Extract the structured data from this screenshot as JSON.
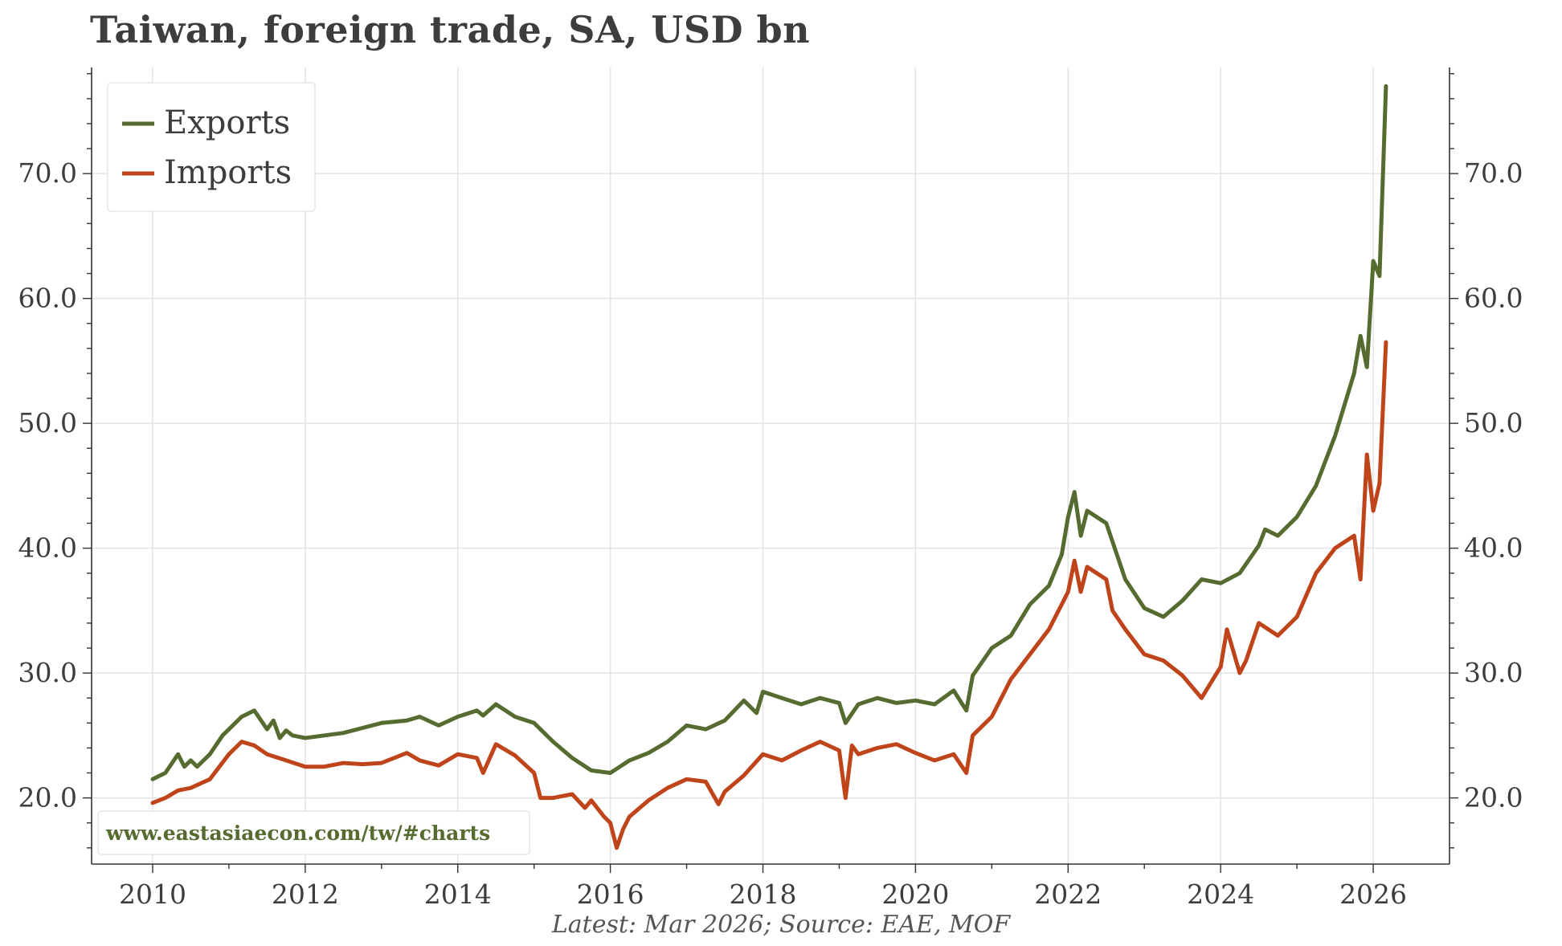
{
  "chart_data": {
    "type": "line",
    "title": "Taiwan, foreign trade, SA, USD bn",
    "xlabel": "",
    "ylabel": "",
    "xlim": [
      2009.2,
      2027.0
    ],
    "ylim": [
      14.7,
      78.5
    ],
    "y_ticks": [
      20,
      30,
      40,
      50,
      60,
      70
    ],
    "y_tick_labels": [
      "20.0",
      "30.0",
      "40.0",
      "50.0",
      "60.0",
      "70.0"
    ],
    "x_ticks": [
      2010,
      2012,
      2014,
      2016,
      2018,
      2020,
      2022,
      2024,
      2026
    ],
    "x_tick_labels": [
      "2010",
      "2012",
      "2014",
      "2016",
      "2018",
      "2020",
      "2022",
      "2024",
      "2026"
    ],
    "grid": true,
    "legend_position": "top-left",
    "watermark": "www.eastasiaecon.com/tw/#charts",
    "footer": "Latest: Mar 2026; Source: EAE, MOF",
    "series": [
      {
        "name": "Exports",
        "color": "#556b2f",
        "x": [
          2010.0,
          2010.167,
          2010.333,
          2010.417,
          2010.5,
          2010.583,
          2010.75,
          2010.917,
          2011.0,
          2011.167,
          2011.333,
          2011.5,
          2011.583,
          2011.667,
          2011.75,
          2011.833,
          2012.0,
          2012.25,
          2012.5,
          2012.75,
          2013.0,
          2013.333,
          2013.5,
          2013.75,
          2014.0,
          2014.25,
          2014.333,
          2014.5,
          2014.75,
          2015.0,
          2015.25,
          2015.5,
          2015.75,
          2016.0,
          2016.25,
          2016.5,
          2016.75,
          2017.0,
          2017.25,
          2017.5,
          2017.75,
          2017.917,
          2018.0,
          2018.25,
          2018.5,
          2018.75,
          2019.0,
          2019.083,
          2019.25,
          2019.5,
          2019.75,
          2020.0,
          2020.25,
          2020.5,
          2020.667,
          2020.75,
          2021.0,
          2021.25,
          2021.5,
          2021.75,
          2021.917,
          2022.0,
          2022.083,
          2022.167,
          2022.25,
          2022.5,
          2022.75,
          2023.0,
          2023.25,
          2023.5,
          2023.75,
          2024.0,
          2024.25,
          2024.5,
          2024.583,
          2024.75,
          2025.0,
          2025.25,
          2025.5,
          2025.75,
          2025.833,
          2025.917,
          2026.0,
          2026.083,
          2026.167
        ],
        "values": [
          21.5,
          22.0,
          23.5,
          22.5,
          23.0,
          22.5,
          23.5,
          25.0,
          25.5,
          26.5,
          27.0,
          25.5,
          26.2,
          24.8,
          25.4,
          25.0,
          24.8,
          25.0,
          25.2,
          25.6,
          26.0,
          26.2,
          26.5,
          25.8,
          26.5,
          27.0,
          26.6,
          27.5,
          26.5,
          26.0,
          24.5,
          23.2,
          22.2,
          22.0,
          23.0,
          23.6,
          24.5,
          25.8,
          25.5,
          26.2,
          27.8,
          26.8,
          28.5,
          28.0,
          27.5,
          28.0,
          27.6,
          26.0,
          27.5,
          28.0,
          27.6,
          27.8,
          27.5,
          28.6,
          27.0,
          29.8,
          32.0,
          33.0,
          35.5,
          37.0,
          39.5,
          42.5,
          44.5,
          41.0,
          43.0,
          42.0,
          37.5,
          35.2,
          34.5,
          35.8,
          37.5,
          37.2,
          38.0,
          40.2,
          41.5,
          41.0,
          42.5,
          45.0,
          49.0,
          54.0,
          57.0,
          54.5,
          63.0,
          61.8,
          77.0
        ],
        "values_note": ""
      },
      {
        "name": "Imports",
        "color": "#c0441a",
        "x": [
          2010.0,
          2010.167,
          2010.333,
          2010.5,
          2010.75,
          2011.0,
          2011.167,
          2011.333,
          2011.5,
          2011.75,
          2012.0,
          2012.25,
          2012.5,
          2012.75,
          2013.0,
          2013.333,
          2013.5,
          2013.75,
          2014.0,
          2014.25,
          2014.333,
          2014.5,
          2014.75,
          2015.0,
          2015.083,
          2015.25,
          2015.5,
          2015.667,
          2015.75,
          2015.917,
          2016.0,
          2016.083,
          2016.167,
          2016.25,
          2016.5,
          2016.75,
          2017.0,
          2017.25,
          2017.417,
          2017.5,
          2017.75,
          2018.0,
          2018.25,
          2018.5,
          2018.75,
          2019.0,
          2019.083,
          2019.167,
          2019.25,
          2019.5,
          2019.75,
          2020.0,
          2020.25,
          2020.5,
          2020.667,
          2020.75,
          2021.0,
          2021.25,
          2021.5,
          2021.75,
          2021.917,
          2022.0,
          2022.083,
          2022.167,
          2022.25,
          2022.5,
          2022.583,
          2022.75,
          2023.0,
          2023.25,
          2023.5,
          2023.75,
          2024.0,
          2024.083,
          2024.25,
          2024.333,
          2024.5,
          2024.75,
          2025.0,
          2025.25,
          2025.5,
          2025.75,
          2025.833,
          2025.917,
          2026.0,
          2026.083,
          2026.167
        ],
        "values": [
          19.6,
          20.0,
          20.6,
          20.8,
          21.5,
          23.5,
          24.5,
          24.2,
          23.5,
          23.0,
          22.5,
          22.5,
          22.8,
          22.7,
          22.8,
          23.6,
          23.0,
          22.6,
          23.5,
          23.2,
          22.0,
          24.3,
          23.4,
          22.0,
          20.0,
          20.0,
          20.3,
          19.2,
          19.8,
          18.5,
          18.0,
          16.0,
          17.5,
          18.5,
          19.8,
          20.8,
          21.5,
          21.3,
          19.5,
          20.5,
          21.8,
          23.5,
          23.0,
          23.8,
          24.5,
          23.8,
          20.0,
          24.2,
          23.5,
          24.0,
          24.3,
          23.6,
          23.0,
          23.5,
          22.0,
          25.0,
          26.5,
          29.5,
          31.5,
          33.5,
          35.5,
          36.5,
          39.0,
          36.5,
          38.5,
          37.5,
          35.0,
          33.5,
          31.5,
          31.0,
          29.8,
          28.0,
          30.5,
          33.5,
          30.0,
          31.0,
          34.0,
          33.0,
          34.5,
          38.0,
          40.0,
          41.0,
          37.5,
          47.5,
          43.0,
          45.2,
          56.5
        ],
        "values_note": ""
      }
    ]
  }
}
